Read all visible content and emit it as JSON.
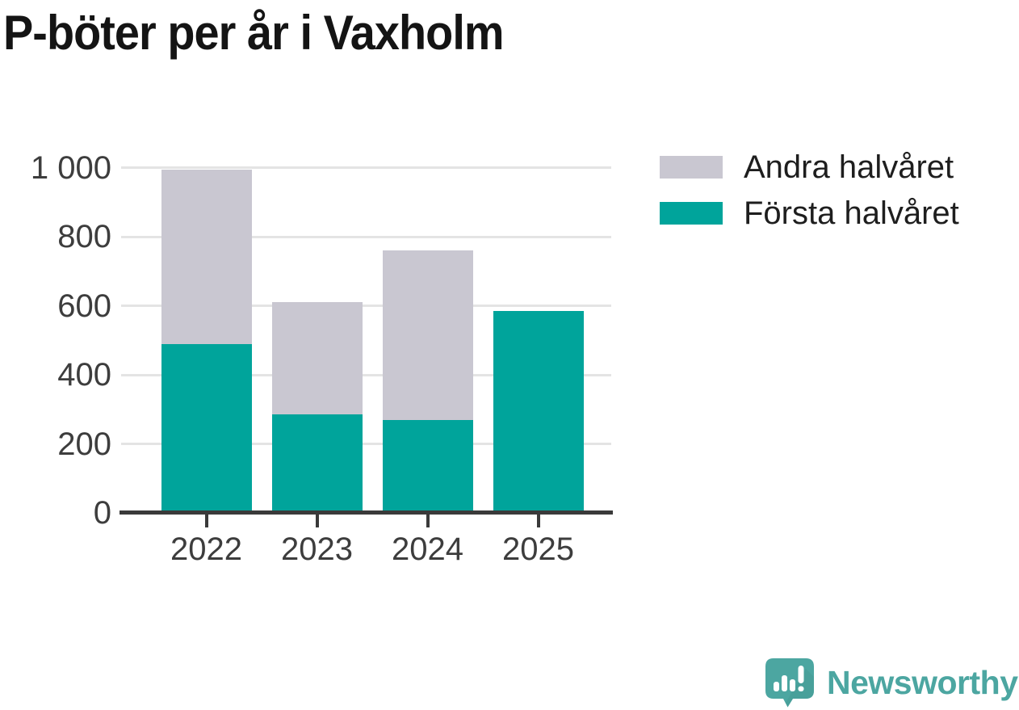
{
  "title": "P-böter per år i Vaxholm",
  "legend": [
    {
      "label": "Andra halvåret",
      "color": "#c9c7d1"
    },
    {
      "label": "Första halvåret",
      "color": "#00a49b"
    }
  ],
  "chart_data": {
    "type": "bar",
    "stacked": true,
    "title": "P-böter per år i Vaxholm",
    "categories": [
      "2022",
      "2023",
      "2024",
      "2025"
    ],
    "series": [
      {
        "name": "Första halvåret",
        "color": "#00a49b",
        "values": [
          490,
          285,
          270,
          585
        ]
      },
      {
        "name": "Andra halvåret",
        "color": "#c9c7d1",
        "values": [
          505,
          325,
          490,
          0
        ]
      }
    ],
    "xlabel": "",
    "ylabel": "",
    "ylim": [
      0,
      1000
    ],
    "yticks": [
      0,
      200,
      400,
      600,
      800,
      1000
    ],
    "ytick_labels": [
      "0",
      "200",
      "400",
      "600",
      "800",
      "1 000"
    ],
    "grid": "horizontal",
    "legend_position": "top-right"
  },
  "branding": {
    "logo_text": "Newsworthy",
    "logo_color": "#4ca6a1"
  },
  "colors": {
    "first_half": "#00a49b",
    "second_half": "#c9c7d1",
    "axis": "#3a3a3a",
    "gridline": "#e4e4e4",
    "text": "#3d3d3d",
    "title": "#141414"
  }
}
